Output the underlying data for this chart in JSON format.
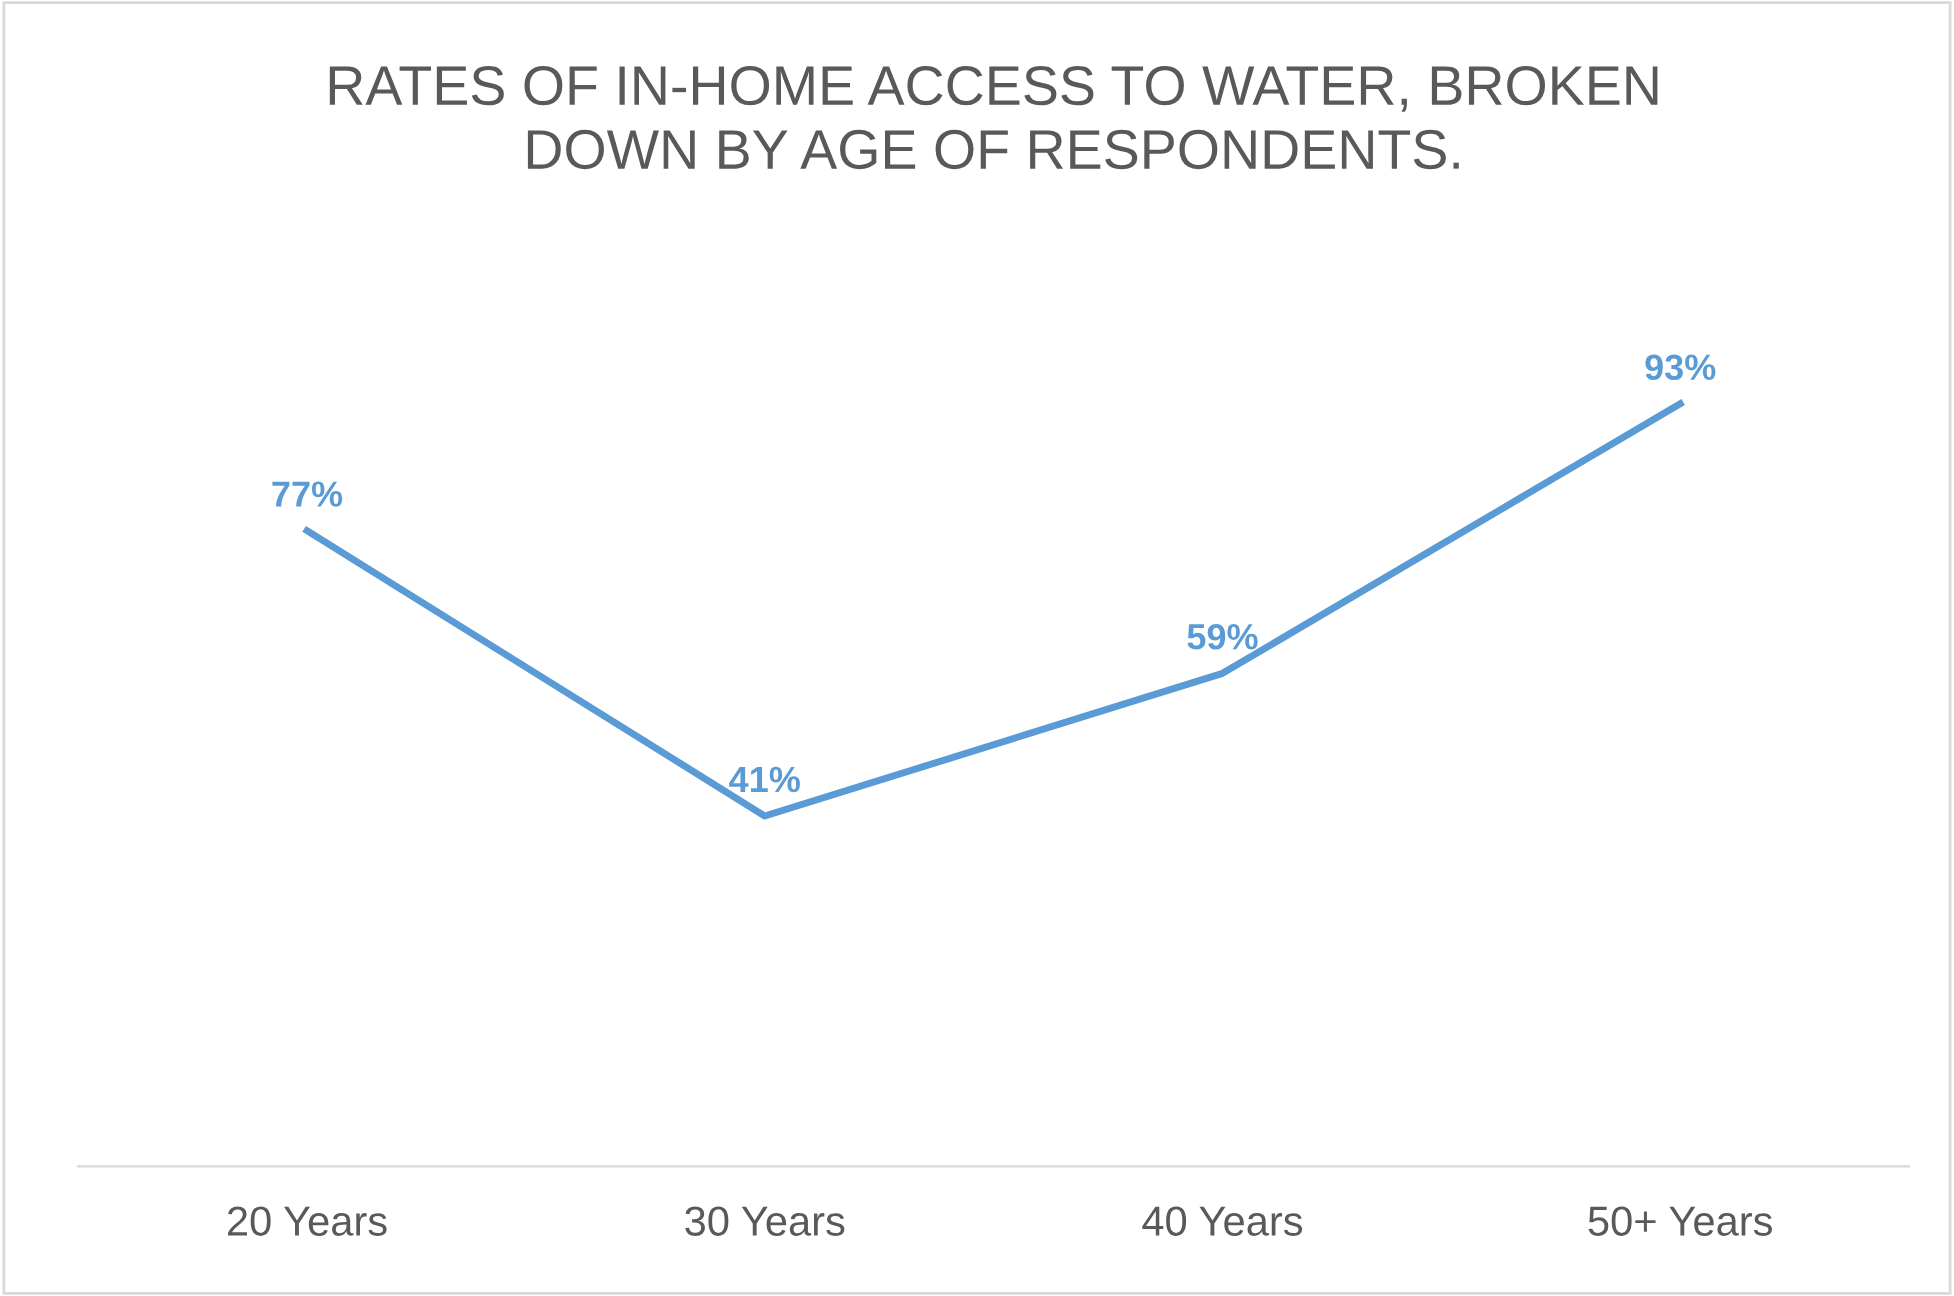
{
  "chart_data": {
    "type": "line",
    "title": "RATES OF IN-HOME ACCESS TO WATER, BROKEN\nDOWN BY AGE OF RESPONDENTS.",
    "categories": [
      "20 Years",
      "30 Years",
      "40 Years",
      "50+ Years"
    ],
    "series": [
      {
        "color": "#5b9bd5",
        "values": [
          77,
          41,
          59,
          93
        ],
        "value_labels": [
          "77%",
          "41%",
          "59%",
          "93%"
        ]
      }
    ],
    "tick_labels": "x",
    "grid": false,
    "legend": false,
    "line_style": "solid"
  }
}
